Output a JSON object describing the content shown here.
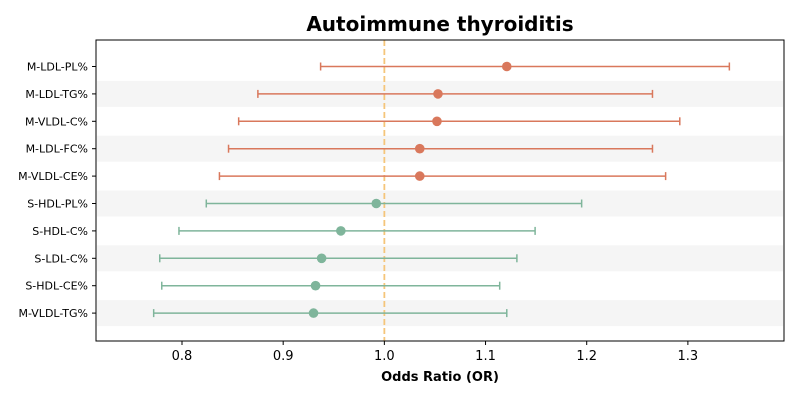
{
  "chart_data": {
    "type": "forest",
    "title": "Autoimmune thyroiditis",
    "xlabel": "Odds Ratio (OR)",
    "ylabel": "",
    "xlim": [
      0.715,
      1.395
    ],
    "xticks": [
      0.8,
      0.9,
      1.0,
      1.1,
      1.2,
      1.3
    ],
    "xtick_labels": [
      "0.8",
      "0.9",
      "1.0",
      "1.1",
      "1.2",
      "1.3"
    ],
    "reference_line": 1.0,
    "grid": false,
    "legend": "none",
    "colors": {
      "positive": "#d9785c",
      "negative": "#7fb59b",
      "reference": "#f5c57a",
      "band": "#f5f5f5"
    },
    "rows": [
      {
        "label": "M-LDL-PL%",
        "or": 1.121,
        "lower": 0.937,
        "upper": 1.341,
        "group": "positive"
      },
      {
        "label": "M-LDL-TG%",
        "or": 1.053,
        "lower": 0.875,
        "upper": 1.265,
        "group": "positive"
      },
      {
        "label": "M-VLDL-C%",
        "or": 1.052,
        "lower": 0.856,
        "upper": 1.292,
        "group": "positive"
      },
      {
        "label": "M-LDL-FC%",
        "or": 1.035,
        "lower": 0.846,
        "upper": 1.265,
        "group": "positive"
      },
      {
        "label": "M-VLDL-CE%",
        "or": 1.035,
        "lower": 0.837,
        "upper": 1.278,
        "group": "positive"
      },
      {
        "label": "S-HDL-PL%",
        "or": 0.992,
        "lower": 0.824,
        "upper": 1.195,
        "group": "negative"
      },
      {
        "label": "S-HDL-C%",
        "or": 0.957,
        "lower": 0.797,
        "upper": 1.149,
        "group": "negative"
      },
      {
        "label": "S-LDL-C%",
        "or": 0.938,
        "lower": 0.778,
        "upper": 1.131,
        "group": "negative"
      },
      {
        "label": "S-HDL-CE%",
        "or": 0.932,
        "lower": 0.78,
        "upper": 1.114,
        "group": "negative"
      },
      {
        "label": "M-VLDL-TG%",
        "or": 0.93,
        "lower": 0.772,
        "upper": 1.121,
        "group": "negative"
      }
    ]
  }
}
